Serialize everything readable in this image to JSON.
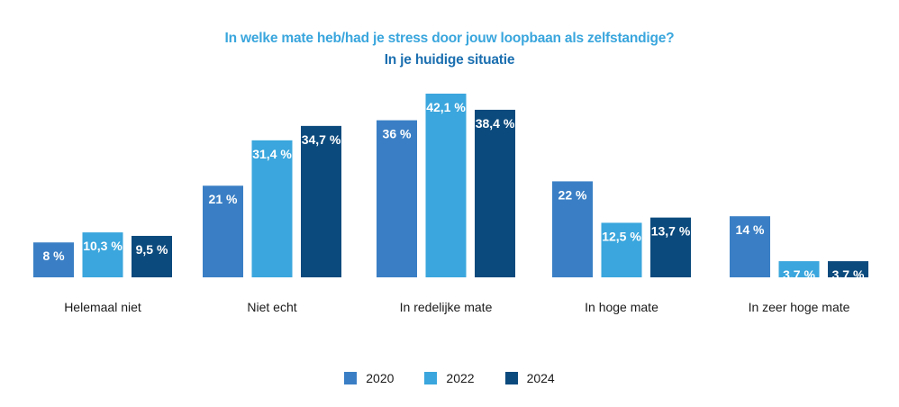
{
  "title_line1": "In welke mate heb/had je stress door jouw loopbaan als zelfstandige?",
  "title_line2": "In je huidige situatie",
  "colors": {
    "s2020": "#3a7fc5",
    "s2022": "#3aa6dd",
    "s2024": "#0b4a7d",
    "title": "#3aa6dd"
  },
  "chart_data": {
    "type": "bar",
    "title": "In welke mate heb/had je stress door jouw loopbaan als zelfstandige? In je huidige situatie",
    "categories": [
      "Helemaal niet",
      "Niet echt",
      "In redelijke mate",
      "In hoge mate",
      "In zeer hoge mate"
    ],
    "series": [
      {
        "name": "2020",
        "values": [
          8,
          21,
          36,
          22,
          14
        ],
        "labels": [
          "8 %",
          "21 %",
          "36 %",
          "22 %",
          "14 %"
        ]
      },
      {
        "name": "2022",
        "values": [
          10.3,
          31.4,
          42.1,
          12.5,
          3.7
        ],
        "labels": [
          "10,3 %",
          "31,4 %",
          "42,1 %",
          "12,5 %",
          "3,7 %"
        ]
      },
      {
        "name": "2024",
        "values": [
          9.5,
          34.7,
          38.4,
          13.7,
          3.7
        ],
        "labels": [
          "9,5 %",
          "34,7 %",
          "38,4 %",
          "13,7 %",
          "3,7 %"
        ]
      }
    ],
    "xlabel": "",
    "ylabel": "",
    "ylim": [
      0,
      42.1
    ],
    "legend_position": "bottom-center",
    "grid": false
  }
}
